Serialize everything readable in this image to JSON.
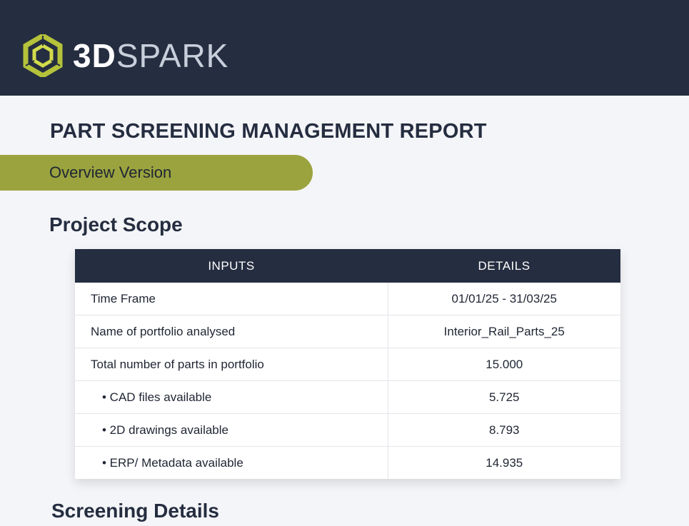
{
  "header": {
    "brand_3d": "3D",
    "brand_spark": "SPARK",
    "logo_icon": "hexagon-cube-logo-icon",
    "bg_color": "#252d40",
    "accent_color": "#9aa33e"
  },
  "report": {
    "title": "PART SCREENING MANAGEMENT REPORT",
    "version": "Overview Version"
  },
  "project_scope": {
    "title": "Project Scope",
    "columns": [
      "INPUTS",
      "DETAILS"
    ],
    "rows": [
      {
        "input": "Time Frame",
        "detail": "01/01/25 - 31/03/25"
      },
      {
        "input": "Name of portfolio analysed",
        "detail": "Interior_Rail_Parts_25"
      },
      {
        "input": "Total number of parts in portfolio",
        "detail": "15.000"
      },
      {
        "input": "• CAD files available",
        "detail": "5.725"
      },
      {
        "input": "• 2D drawings available",
        "detail": "8.793"
      },
      {
        "input": "• ERP/ Metadata available",
        "detail": "14.935"
      }
    ]
  },
  "screening_details": {
    "title": "Screening Details"
  }
}
